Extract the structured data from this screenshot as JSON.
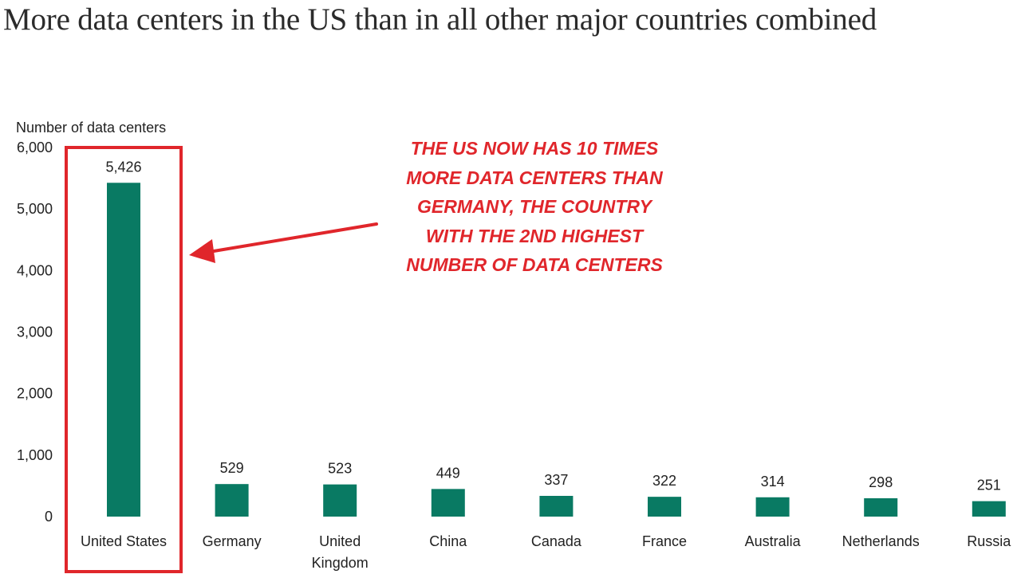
{
  "title": "More data centers in the US than in all other major countries combined",
  "annotation": {
    "lines": [
      "THE US NOW HAS 10 TIMES",
      "MORE DATA CENTERS THAN",
      "GERMANY, THE COUNTRY",
      "WITH THE 2ND HIGHEST",
      "NUMBER OF DATA CENTERS"
    ]
  },
  "colors": {
    "bar": "#097a63",
    "highlight": "#e0262b",
    "text": "#222222"
  },
  "chart_data": {
    "type": "bar",
    "title": "More data centers in the US than in all other major countries combined",
    "ylabel": "Number of data centers",
    "xlabel": "",
    "ylim": [
      0,
      6000
    ],
    "yticks": [
      0,
      1000,
      2000,
      3000,
      4000,
      5000,
      6000
    ],
    "ytick_labels": [
      "0",
      "1,000",
      "2,000",
      "3,000",
      "4,000",
      "5,000",
      "6,000"
    ],
    "categories": [
      "United States",
      "Germany",
      "United Kingdom",
      "China",
      "Canada",
      "France",
      "Australia",
      "Netherlands",
      "Russia"
    ],
    "category_label_lines": [
      [
        "United States"
      ],
      [
        "Germany"
      ],
      [
        "United",
        "Kingdom"
      ],
      [
        "China"
      ],
      [
        "Canada"
      ],
      [
        "France"
      ],
      [
        "Australia"
      ],
      [
        "Netherlands"
      ],
      [
        "Russia"
      ]
    ],
    "values": [
      5426,
      529,
      523,
      449,
      337,
      322,
      314,
      298,
      251
    ],
    "value_labels": [
      "5,426",
      "529",
      "523",
      "449",
      "337",
      "322",
      "314",
      "298",
      "251"
    ],
    "grid": false,
    "highlighted_category": "United States"
  }
}
